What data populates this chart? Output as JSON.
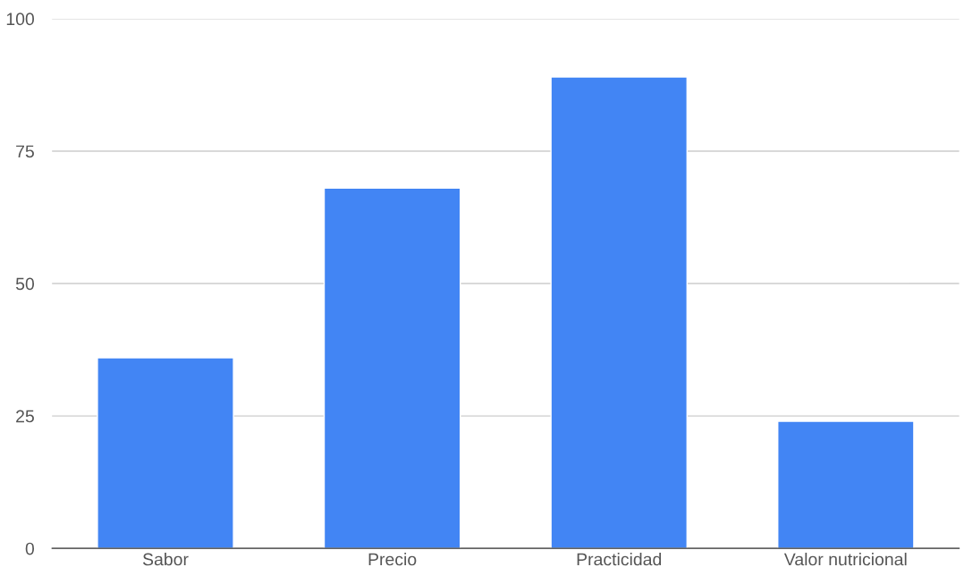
{
  "chart_data": {
    "type": "bar",
    "categories": [
      "Sabor",
      "Precio",
      "Practicidad",
      "Valor nutricional"
    ],
    "values": [
      36,
      68,
      89,
      24
    ],
    "color": "#4285f4",
    "ylim": [
      0,
      100
    ],
    "yticks": [
      0,
      25,
      50,
      75,
      100
    ],
    "grid": "y"
  }
}
